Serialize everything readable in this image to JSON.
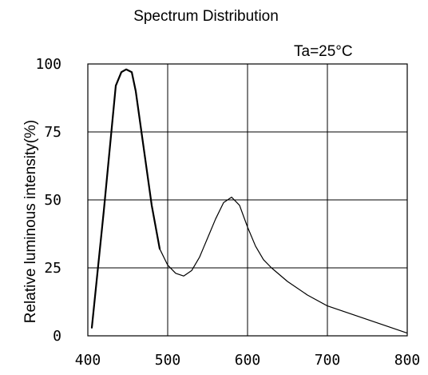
{
  "chart_data": {
    "type": "line",
    "title": "Spectrum Distribution",
    "annotation": "Ta=25°C",
    "xlabel": "",
    "ylabel": "Relative luminous intensity(%)",
    "xlim": [
      400,
      800
    ],
    "ylim": [
      0,
      100
    ],
    "xticks": [
      "400",
      "500",
      "600",
      "700",
      "800"
    ],
    "yticks": [
      "0",
      "25",
      "50",
      "75",
      "100"
    ],
    "grid": true,
    "series": [
      {
        "x": [
          405,
          420,
          435,
          442,
          448,
          455,
          460,
          470,
          480,
          490,
          500,
          510,
          520,
          530,
          540,
          550,
          560,
          570,
          580,
          590,
          600,
          610,
          620,
          630,
          650,
          675,
          700,
          725,
          750,
          775,
          800
        ],
        "y": [
          3,
          46,
          92,
          97,
          98,
          97,
          90,
          69,
          48,
          32,
          26,
          23,
          22,
          24,
          29,
          36,
          43,
          49,
          51,
          48,
          40,
          33,
          28,
          25,
          20,
          15,
          11,
          8.5,
          6,
          3.5,
          1
        ]
      }
    ]
  }
}
